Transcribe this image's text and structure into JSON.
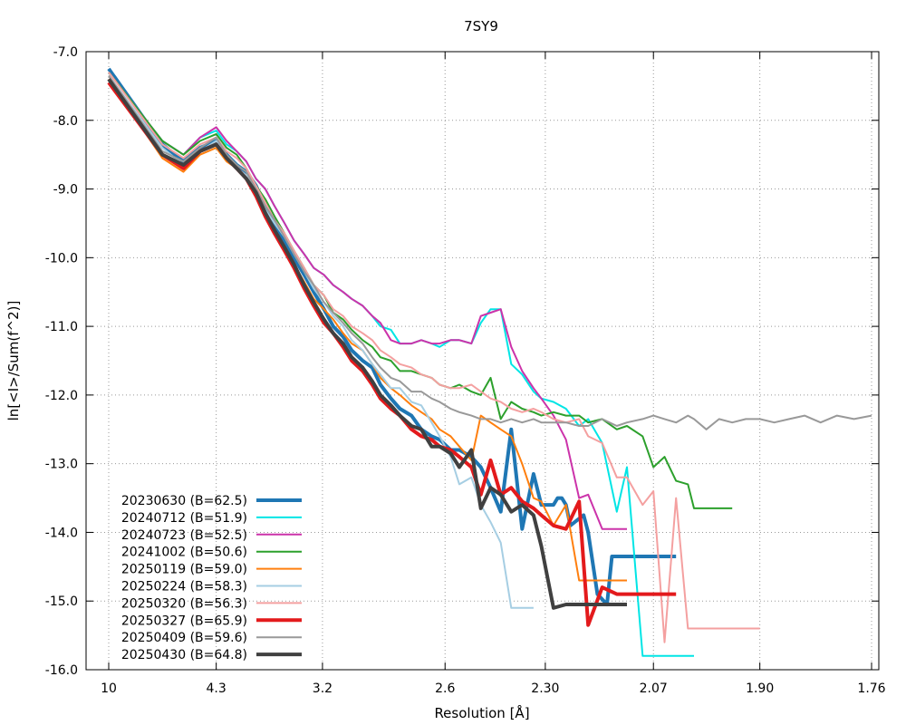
{
  "chart_data": {
    "type": "line",
    "title": "7SY9",
    "xlabel": "Resolution [Å]",
    "ylabel": "ln[<I>/Sum(f^2)]",
    "x_axis_unit": "Å resolution, axis spaced linearly in 1/d²",
    "xticks": [
      "10",
      "4.3",
      "3.2",
      "2.6",
      "2.30",
      "2.07",
      "1.90",
      "1.76"
    ],
    "xlim": [
      10,
      1.76
    ],
    "ylim": [
      -16.0,
      -7.0
    ],
    "yticks": [
      "-7.0",
      "-8.0",
      "-9.0",
      "-10.0",
      "-11.0",
      "-12.0",
      "-13.0",
      "-14.0",
      "-15.0",
      "-16.0"
    ],
    "grid": true,
    "legend_position": "bottom-left",
    "series": [
      {
        "name": "20230630 (B=62.5)",
        "color": "#1f77b4",
        "width": 4,
        "x": [
          10.0,
          5.59,
          4.96,
          4.59,
          4.3,
          4.14,
          4.0,
          3.88,
          3.77,
          3.67,
          3.58,
          3.49,
          3.41,
          3.33,
          3.26,
          3.19,
          3.13,
          3.07,
          3.02,
          2.96,
          2.91,
          2.87,
          2.82,
          2.78,
          2.73,
          2.69,
          2.65,
          2.62,
          2.58,
          2.55,
          2.51,
          2.48,
          2.45,
          2.42,
          2.39,
          2.36,
          2.33,
          2.31,
          2.28,
          2.27,
          2.26,
          2.25,
          2.24,
          2.22,
          2.21,
          2.2,
          2.18,
          2.16,
          2.15,
          2.13,
          2.11,
          2.1,
          2.09,
          2.06,
          2.05,
          2.04,
          2.03
        ],
        "y": [
          -7.25,
          -8.35,
          -8.6,
          -8.4,
          -8.3,
          -8.5,
          -8.65,
          -8.75,
          -8.95,
          -9.25,
          -9.5,
          -9.75,
          -10.0,
          -10.25,
          -10.5,
          -10.75,
          -11.0,
          -11.15,
          -11.35,
          -11.5,
          -11.6,
          -11.85,
          -12.05,
          -12.2,
          -12.3,
          -12.5,
          -12.6,
          -12.65,
          -12.8,
          -12.8,
          -12.9,
          -13.05,
          -13.35,
          -13.7,
          -12.5,
          -13.95,
          -13.15,
          -13.6,
          -13.6,
          -13.5,
          -13.5,
          -13.6,
          -13.9,
          -13.8,
          -13.75,
          -14.0,
          -14.9,
          -15.05,
          -14.35,
          -14.35,
          -14.35,
          -14.35,
          -14.35,
          -14.35,
          -14.35,
          -14.35,
          -14.35
        ]
      },
      {
        "name": "20240712 (B=51.9)",
        "color": "#00e5e5",
        "width": 2,
        "x": [
          10.0,
          5.59,
          4.96,
          4.59,
          4.3,
          4.14,
          4.0,
          3.88,
          3.77,
          3.67,
          3.58,
          3.49,
          3.41,
          3.33,
          3.26,
          3.19,
          3.13,
          3.07,
          3.02,
          2.96,
          2.91,
          2.87,
          2.82,
          2.78,
          2.73,
          2.69,
          2.65,
          2.62,
          2.58,
          2.55,
          2.51,
          2.48,
          2.45,
          2.42,
          2.39,
          2.36,
          2.33,
          2.31,
          2.28,
          2.25,
          2.22,
          2.2,
          2.17,
          2.14,
          2.12,
          2.09,
          2.07,
          2.05,
          2.03,
          2.01,
          2.0
        ],
        "y": [
          -7.3,
          -8.3,
          -8.5,
          -8.25,
          -8.15,
          -8.35,
          -8.45,
          -8.6,
          -8.85,
          -9.0,
          -9.25,
          -9.5,
          -9.75,
          -9.95,
          -10.15,
          -10.25,
          -10.4,
          -10.5,
          -10.6,
          -10.7,
          -10.85,
          -11.0,
          -11.05,
          -11.25,
          -11.25,
          -11.2,
          -11.25,
          -11.3,
          -11.2,
          -11.2,
          -11.25,
          -10.95,
          -10.75,
          -10.75,
          -11.55,
          -11.7,
          -11.95,
          -12.05,
          -12.1,
          -12.2,
          -12.45,
          -12.35,
          -12.7,
          -13.7,
          -13.05,
          -15.8,
          -15.8,
          -15.8,
          -15.8,
          -15.8,
          -15.8
        ]
      },
      {
        "name": "20240723 (B=52.5)",
        "color": "#cc33aa",
        "width": 2,
        "x": [
          10.0,
          5.59,
          4.96,
          4.59,
          4.3,
          4.14,
          4.0,
          3.88,
          3.77,
          3.67,
          3.58,
          3.49,
          3.41,
          3.33,
          3.26,
          3.19,
          3.13,
          3.07,
          3.02,
          2.96,
          2.91,
          2.87,
          2.82,
          2.78,
          2.73,
          2.69,
          2.65,
          2.62,
          2.58,
          2.55,
          2.51,
          2.48,
          2.45,
          2.42,
          2.39,
          2.36,
          2.33,
          2.31,
          2.28,
          2.25,
          2.22,
          2.2,
          2.17,
          2.14,
          2.12
        ],
        "y": [
          -7.3,
          -8.3,
          -8.5,
          -8.25,
          -8.1,
          -8.3,
          -8.45,
          -8.6,
          -8.85,
          -9.0,
          -9.25,
          -9.5,
          -9.75,
          -9.95,
          -10.15,
          -10.25,
          -10.4,
          -10.5,
          -10.6,
          -10.7,
          -10.85,
          -10.95,
          -11.2,
          -11.25,
          -11.25,
          -11.2,
          -11.25,
          -11.25,
          -11.2,
          -11.2,
          -11.25,
          -10.85,
          -10.8,
          -10.75,
          -11.3,
          -11.65,
          -11.9,
          -12.05,
          -12.3,
          -12.65,
          -13.5,
          -13.45,
          -13.95,
          -13.95,
          -13.95
        ]
      },
      {
        "name": "20241002 (B=50.6)",
        "color": "#2ca02c",
        "width": 2,
        "x": [
          10.0,
          5.59,
          4.96,
          4.59,
          4.3,
          4.14,
          4.0,
          3.88,
          3.77,
          3.67,
          3.58,
          3.49,
          3.41,
          3.33,
          3.26,
          3.19,
          3.13,
          3.07,
          3.02,
          2.96,
          2.91,
          2.87,
          2.82,
          2.78,
          2.73,
          2.69,
          2.65,
          2.62,
          2.58,
          2.55,
          2.51,
          2.48,
          2.45,
          2.42,
          2.39,
          2.36,
          2.33,
          2.31,
          2.28,
          2.25,
          2.22,
          2.2,
          2.17,
          2.14,
          2.12,
          2.09,
          2.07,
          2.05,
          2.03,
          2.01,
          2.0,
          1.98,
          1.96,
          1.94
        ],
        "y": [
          -7.3,
          -8.3,
          -8.5,
          -8.3,
          -8.2,
          -8.4,
          -8.5,
          -8.7,
          -8.95,
          -9.15,
          -9.4,
          -9.65,
          -9.9,
          -10.15,
          -10.4,
          -10.55,
          -10.8,
          -10.9,
          -11.05,
          -11.2,
          -11.3,
          -11.45,
          -11.5,
          -11.65,
          -11.65,
          -11.7,
          -11.75,
          -11.85,
          -11.9,
          -11.85,
          -11.95,
          -12.0,
          -11.75,
          -12.35,
          -12.1,
          -12.2,
          -12.25,
          -12.3,
          -12.25,
          -12.3,
          -12.3,
          -12.4,
          -12.35,
          -12.5,
          -12.45,
          -12.6,
          -13.05,
          -12.9,
          -13.25,
          -13.3,
          -13.65,
          -13.65,
          -13.65,
          -13.65
        ]
      },
      {
        "name": "20250119 (B=59.0)",
        "color": "#ff7f0e",
        "width": 2,
        "x": [
          10.0,
          5.59,
          4.96,
          4.59,
          4.3,
          4.14,
          4.0,
          3.88,
          3.77,
          3.67,
          3.58,
          3.49,
          3.41,
          3.33,
          3.26,
          3.19,
          3.13,
          3.07,
          3.02,
          2.96,
          2.91,
          2.87,
          2.82,
          2.78,
          2.73,
          2.69,
          2.65,
          2.62,
          2.58,
          2.55,
          2.51,
          2.48,
          2.45,
          2.42,
          2.39,
          2.36,
          2.33,
          2.31,
          2.28,
          2.25,
          2.22,
          2.2,
          2.17,
          2.14,
          2.12
        ],
        "y": [
          -7.4,
          -8.55,
          -8.75,
          -8.5,
          -8.4,
          -8.6,
          -8.7,
          -8.8,
          -9.05,
          -9.35,
          -9.6,
          -9.85,
          -10.1,
          -10.35,
          -10.6,
          -10.75,
          -10.9,
          -11.1,
          -11.25,
          -11.35,
          -11.55,
          -11.75,
          -11.9,
          -12.0,
          -12.15,
          -12.25,
          -12.35,
          -12.5,
          -12.6,
          -12.75,
          -12.95,
          -12.3,
          -12.4,
          -12.5,
          -12.6,
          -13.0,
          -13.5,
          -13.55,
          -13.9,
          -13.6,
          -14.7,
          -14.7,
          -14.7,
          -14.7,
          -14.7
        ]
      },
      {
        "name": "20250224 (B=58.3)",
        "color": "#a6cee3",
        "width": 2,
        "x": [
          10.0,
          5.59,
          4.96,
          4.59,
          4.3,
          4.14,
          4.0,
          3.88,
          3.77,
          3.67,
          3.58,
          3.49,
          3.41,
          3.33,
          3.26,
          3.19,
          3.13,
          3.07,
          3.02,
          2.96,
          2.91,
          2.87,
          2.82,
          2.78,
          2.73,
          2.69,
          2.65,
          2.62,
          2.58,
          2.55,
          2.51,
          2.48,
          2.45,
          2.42,
          2.39,
          2.36,
          2.33
        ],
        "y": [
          -7.35,
          -8.4,
          -8.65,
          -8.45,
          -8.3,
          -8.55,
          -8.7,
          -8.8,
          -9.05,
          -9.3,
          -9.5,
          -9.7,
          -9.95,
          -10.2,
          -10.45,
          -10.65,
          -10.85,
          -11.0,
          -11.2,
          -11.35,
          -11.55,
          -11.7,
          -11.9,
          -11.9,
          -12.1,
          -12.15,
          -12.4,
          -12.6,
          -12.9,
          -13.3,
          -13.2,
          -13.6,
          -13.85,
          -14.15,
          -15.1,
          -15.1,
          -15.1
        ]
      },
      {
        "name": "20250320 (B=56.3)",
        "color": "#f4a0a0",
        "width": 2,
        "x": [
          10.0,
          5.59,
          4.96,
          4.59,
          4.3,
          4.14,
          4.0,
          3.88,
          3.77,
          3.67,
          3.58,
          3.49,
          3.41,
          3.33,
          3.26,
          3.19,
          3.13,
          3.07,
          3.02,
          2.96,
          2.91,
          2.87,
          2.82,
          2.78,
          2.73,
          2.69,
          2.65,
          2.62,
          2.58,
          2.55,
          2.51,
          2.48,
          2.45,
          2.42,
          2.39,
          2.36,
          2.33,
          2.31,
          2.28,
          2.25,
          2.22,
          2.2,
          2.17,
          2.14,
          2.12,
          2.09,
          2.07,
          2.05,
          2.03,
          2.01,
          2.0,
          1.98,
          1.96,
          1.94,
          1.92,
          1.9
        ],
        "y": [
          -7.3,
          -8.35,
          -8.55,
          -8.35,
          -8.25,
          -8.45,
          -8.55,
          -8.7,
          -8.95,
          -9.2,
          -9.45,
          -9.65,
          -9.9,
          -10.15,
          -10.4,
          -10.55,
          -10.75,
          -10.85,
          -11.0,
          -11.1,
          -11.2,
          -11.35,
          -11.45,
          -11.55,
          -11.6,
          -11.7,
          -11.75,
          -11.85,
          -11.9,
          -11.9,
          -11.85,
          -11.95,
          -12.05,
          -12.1,
          -12.2,
          -12.25,
          -12.2,
          -12.25,
          -12.35,
          -12.4,
          -12.35,
          -12.6,
          -12.7,
          -13.2,
          -13.2,
          -13.6,
          -13.4,
          -15.6,
          -13.5,
          -15.4,
          -15.4,
          -15.4,
          -15.4,
          -15.4,
          -15.4,
          -15.4
        ]
      },
      {
        "name": "20250327 (B=65.9)",
        "color": "#e31a1c",
        "width": 4,
        "x": [
          10.0,
          5.59,
          4.96,
          4.59,
          4.3,
          4.14,
          4.0,
          3.88,
          3.77,
          3.67,
          3.58,
          3.49,
          3.41,
          3.33,
          3.26,
          3.19,
          3.13,
          3.07,
          3.02,
          2.96,
          2.91,
          2.87,
          2.82,
          2.78,
          2.73,
          2.69,
          2.65,
          2.62,
          2.58,
          2.55,
          2.51,
          2.48,
          2.45,
          2.42,
          2.39,
          2.36,
          2.33,
          2.31,
          2.28,
          2.25,
          2.22,
          2.2,
          2.17,
          2.14,
          2.12,
          2.09,
          2.07,
          2.05,
          2.03
        ],
        "y": [
          -7.45,
          -8.5,
          -8.7,
          -8.45,
          -8.35,
          -8.55,
          -8.7,
          -8.85,
          -9.1,
          -9.4,
          -9.65,
          -9.9,
          -10.15,
          -10.45,
          -10.7,
          -10.95,
          -11.1,
          -11.3,
          -11.5,
          -11.65,
          -11.85,
          -12.05,
          -12.2,
          -12.3,
          -12.5,
          -12.6,
          -12.65,
          -12.75,
          -12.8,
          -12.9,
          -13.05,
          -13.45,
          -12.95,
          -13.45,
          -13.35,
          -13.55,
          -13.65,
          -13.75,
          -13.9,
          -13.95,
          -13.55,
          -15.35,
          -14.8,
          -14.9,
          -14.9,
          -14.9,
          -14.9,
          -14.9,
          -14.9
        ]
      },
      {
        "name": "20250409 (B=59.6)",
        "color": "#999999",
        "width": 2,
        "x": [
          10.0,
          5.59,
          4.96,
          4.59,
          4.3,
          4.14,
          4.0,
          3.88,
          3.77,
          3.67,
          3.58,
          3.49,
          3.41,
          3.33,
          3.26,
          3.19,
          3.13,
          3.07,
          3.02,
          2.96,
          2.91,
          2.87,
          2.82,
          2.78,
          2.73,
          2.69,
          2.65,
          2.62,
          2.58,
          2.55,
          2.51,
          2.48,
          2.45,
          2.42,
          2.39,
          2.36,
          2.33,
          2.31,
          2.28,
          2.25,
          2.22,
          2.2,
          2.17,
          2.14,
          2.12,
          2.09,
          2.07,
          2.05,
          2.03,
          2.01,
          2.0,
          1.98,
          1.96,
          1.94,
          1.92,
          1.9,
          1.88,
          1.86,
          1.84,
          1.82,
          1.8,
          1.78,
          1.76
        ],
        "y": [
          -7.35,
          -8.45,
          -8.6,
          -8.4,
          -8.25,
          -8.5,
          -8.65,
          -8.75,
          -9.0,
          -9.25,
          -9.45,
          -9.7,
          -9.95,
          -10.2,
          -10.4,
          -10.65,
          -10.8,
          -10.95,
          -11.1,
          -11.25,
          -11.45,
          -11.6,
          -11.75,
          -11.8,
          -11.95,
          -11.95,
          -12.05,
          -12.1,
          -12.2,
          -12.25,
          -12.3,
          -12.35,
          -12.35,
          -12.4,
          -12.35,
          -12.4,
          -12.35,
          -12.4,
          -12.4,
          -12.4,
          -12.45,
          -12.45,
          -12.35,
          -12.45,
          -12.4,
          -12.35,
          -12.3,
          -12.35,
          -12.4,
          -12.3,
          -12.35,
          -12.5,
          -12.35,
          -12.4,
          -12.35,
          -12.35,
          -12.4,
          -12.35,
          -12.3,
          -12.4,
          -12.3,
          -12.35,
          -12.3
        ]
      },
      {
        "name": "20250430 (B=64.8)",
        "color": "#404040",
        "width": 4,
        "x": [
          10.0,
          5.59,
          4.96,
          4.59,
          4.3,
          4.14,
          4.0,
          3.88,
          3.77,
          3.67,
          3.58,
          3.49,
          3.41,
          3.33,
          3.26,
          3.19,
          3.13,
          3.07,
          3.02,
          2.96,
          2.91,
          2.87,
          2.82,
          2.78,
          2.73,
          2.69,
          2.65,
          2.62,
          2.58,
          2.55,
          2.51,
          2.48,
          2.45,
          2.42,
          2.39,
          2.36,
          2.33,
          2.31,
          2.28,
          2.25,
          2.22,
          2.2,
          2.17,
          2.14,
          2.12
        ],
        "y": [
          -7.4,
          -8.5,
          -8.65,
          -8.45,
          -8.35,
          -8.55,
          -8.7,
          -8.85,
          -9.05,
          -9.35,
          -9.6,
          -9.85,
          -10.1,
          -10.4,
          -10.65,
          -10.9,
          -11.1,
          -11.25,
          -11.45,
          -11.6,
          -11.8,
          -12.0,
          -12.15,
          -12.3,
          -12.45,
          -12.5,
          -12.75,
          -12.75,
          -12.85,
          -13.05,
          -12.8,
          -13.65,
          -13.35,
          -13.45,
          -13.7,
          -13.6,
          -13.75,
          -14.2,
          -15.1,
          -15.05,
          -15.05,
          -15.05,
          -15.05,
          -15.05,
          -15.05
        ]
      }
    ]
  }
}
